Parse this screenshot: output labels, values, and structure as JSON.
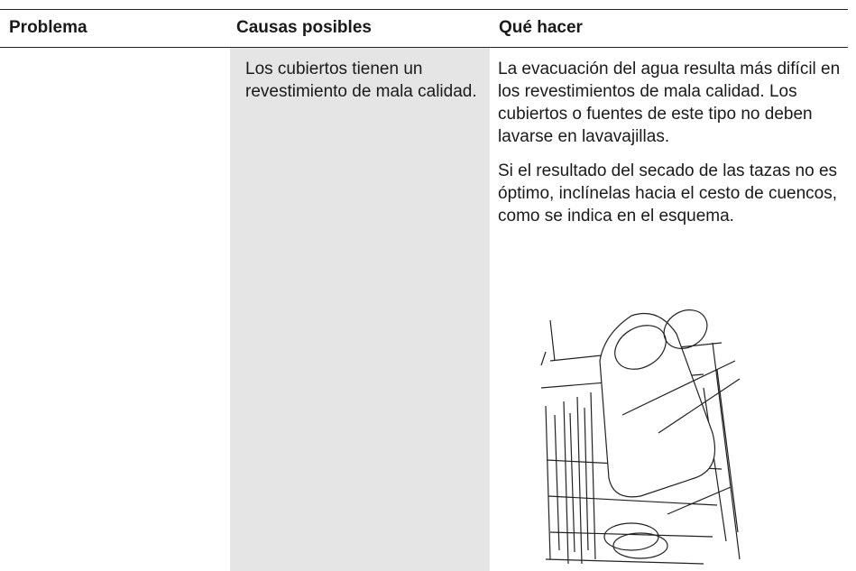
{
  "table": {
    "headers": [
      "Problema",
      "Causas posibles",
      "Qué hacer"
    ],
    "rows": [
      {
        "cause": "Los cubiertos tienen un revestimiento de mala calidad.",
        "actions": [
          "La evacuación del agua resulta más difícil en los revestimientos de mala calidad. Los cubiertos o fuentes de este tipo no deben lavarse en lavavajillas.",
          "Si el resultado del secado de las tazas no es óptimo, inclínelas hacia el cesto de cuencos, como se indica en el esquema."
        ]
      }
    ]
  }
}
